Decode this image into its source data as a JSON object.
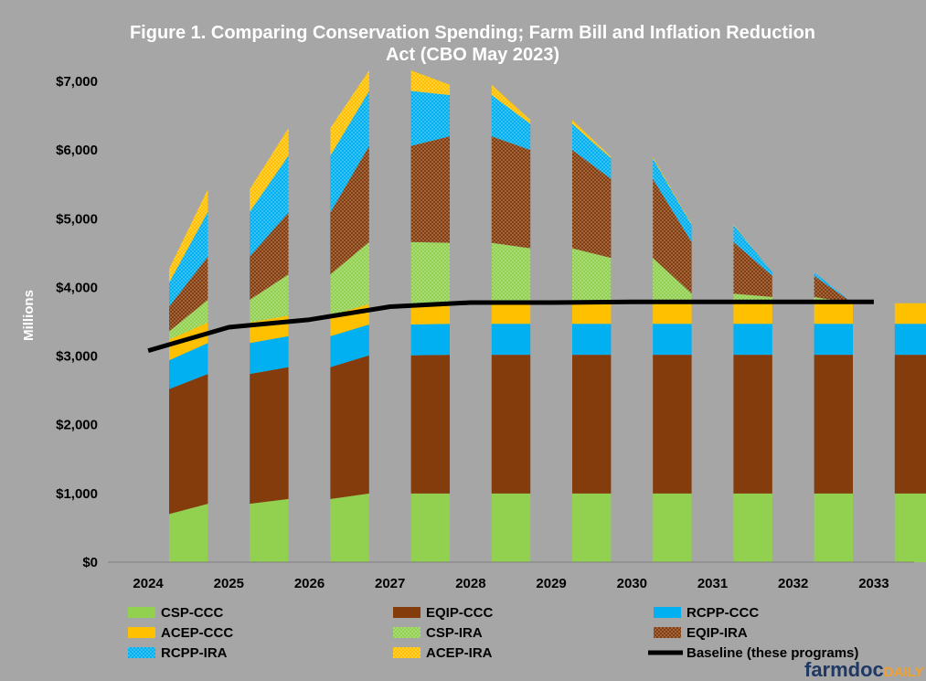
{
  "chart_data": {
    "type": "bar",
    "title": "Figure 1. Comparing Conservation Spending; Farm Bill and Inflation Reduction Act (CBO May 2023)",
    "title_lines": [
      "Figure 1. Comparing Conservation Spending; Farm Bill and Inflation Reduction",
      "Act (CBO May 2023)"
    ],
    "ylabel": "Millions",
    "xlabel": "",
    "ylim": [
      0,
      7000
    ],
    "yticks": [
      "$0",
      "$1,000",
      "$2,000",
      "$3,000",
      "$4,000",
      "$5,000",
      "$6,000",
      "$7,000"
    ],
    "categories": [
      "2024",
      "2025",
      "2026",
      "2027",
      "2028",
      "2029",
      "2030",
      "2031",
      "2032",
      "2033"
    ],
    "stacked": true,
    "bar_style": "sloped tops (each stacked bar spans from the start of one fiscal year to the next)",
    "series": [
      {
        "name": "CSP-CCC",
        "color": "#92d050",
        "pattern": "solid",
        "values": [
          700,
          850,
          920,
          1000,
          1000,
          1000,
          1000,
          1000,
          1000,
          1000
        ]
      },
      {
        "name": "EQIP-CCC",
        "color": "#843c0c",
        "pattern": "solid",
        "values": [
          1820,
          1890,
          1920,
          2010,
          2020,
          2020,
          2020,
          2020,
          2020,
          2020
        ]
      },
      {
        "name": "RCPP-CCC",
        "color": "#00b0f0",
        "pattern": "solid",
        "values": [
          420,
          450,
          450,
          450,
          450,
          450,
          450,
          450,
          450,
          450
        ]
      },
      {
        "name": "ACEP-CCC",
        "color": "#ffc000",
        "pattern": "solid",
        "values": [
          300,
          300,
          300,
          300,
          300,
          300,
          300,
          300,
          300,
          300
        ]
      },
      {
        "name": "CSP-IRA",
        "color": "#92d050",
        "pattern": "dotted",
        "values": [
          120,
          330,
          600,
          900,
          880,
          800,
          660,
          140,
          90,
          0
        ]
      },
      {
        "name": "EQIP-IRA",
        "color": "#843c0c",
        "pattern": "dotted",
        "values": [
          360,
          630,
          900,
          1400,
          1550,
          1430,
          1150,
          750,
          310,
          0
        ]
      },
      {
        "name": "RCPP-IRA",
        "color": "#00b0f0",
        "pattern": "dotted",
        "values": [
          350,
          650,
          830,
          800,
          600,
          380,
          300,
          250,
          50,
          0
        ]
      },
      {
        "name": "ACEP-IRA",
        "color": "#ffc000",
        "pattern": "dotted",
        "values": [
          200,
          330,
          400,
          300,
          150,
          60,
          20,
          10,
          0,
          0
        ]
      }
    ],
    "baseline": {
      "name": "Baseline (these programs)",
      "color": "#000000",
      "x": [
        "2024",
        "2025",
        "2026",
        "2027",
        "2028",
        "2029",
        "2030",
        "2031",
        "2032",
        "2033"
      ],
      "values": [
        3080,
        3420,
        3530,
        3720,
        3780,
        3780,
        3790,
        3790,
        3790,
        3790
      ]
    },
    "legend": {
      "placement": "bottom",
      "columns": 3,
      "order": [
        "CSP-CCC",
        "EQIP-CCC",
        "RCPP-CCC",
        "ACEP-CCC",
        "CSP-IRA",
        "EQIP-IRA",
        "RCPP-IRA",
        "ACEP-IRA",
        "Baseline (these programs)"
      ]
    },
    "grid": false,
    "background": "#a6a6a6"
  },
  "watermark": {
    "part1": "farmdoc",
    "part2": "DAILY"
  }
}
